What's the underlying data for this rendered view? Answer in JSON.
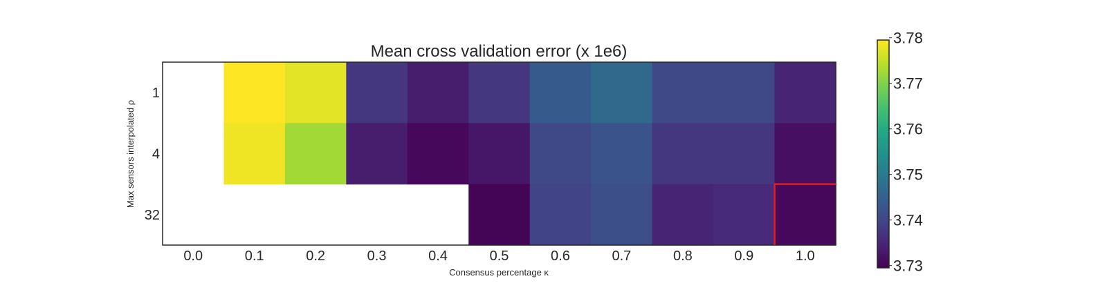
{
  "chart_data": {
    "type": "heatmap",
    "title": "Mean cross validation error (x 1e6)",
    "xlabel": "Consensus percentage κ",
    "ylabel": "Max sensors interpolated ρ",
    "x": [
      "0.0",
      "0.1",
      "0.2",
      "0.3",
      "0.4",
      "0.5",
      "0.6",
      "0.7",
      "0.8",
      "0.9",
      "1.0"
    ],
    "y": [
      "1",
      "4",
      "32"
    ],
    "values": [
      [
        null,
        3.7795,
        3.7775,
        3.7375,
        3.7335,
        3.7375,
        3.7435,
        3.7465,
        3.7405,
        3.7405,
        3.7345
      ],
      [
        null,
        3.7785,
        3.7725,
        3.7335,
        3.7305,
        3.7325,
        3.7405,
        3.7425,
        3.7375,
        3.7375,
        3.7315
      ],
      [
        null,
        null,
        null,
        null,
        null,
        3.73,
        3.7395,
        3.7415,
        3.7345,
        3.7355,
        3.7305
      ]
    ],
    "colorbar": {
      "colormap": "viridis",
      "range": [
        3.7295,
        3.7795
      ],
      "ticks": [
        "3.78",
        "3.77",
        "3.76",
        "3.75",
        "3.74",
        "3.73"
      ]
    },
    "highlight_cell": {
      "x": "1.0",
      "y": "32",
      "color": "#e41a1c"
    },
    "grid": false
  }
}
